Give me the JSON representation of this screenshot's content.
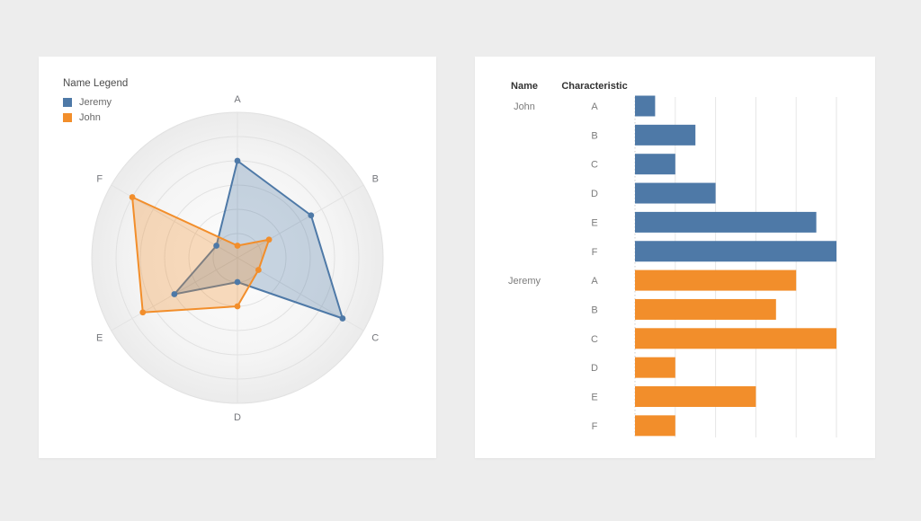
{
  "page": {
    "background": "#ededed"
  },
  "colors": {
    "blue": "#4e79a7",
    "orange": "#f28e2b"
  },
  "radar_card": {
    "legend": {
      "title": "Name Legend",
      "items": [
        {
          "label": "Jeremy",
          "color": "#4e79a7"
        },
        {
          "label": "John",
          "color": "#f28e2b"
        }
      ]
    }
  },
  "bar_card": {
    "name_header": "Name",
    "characteristic_header": "Characteristic"
  },
  "chart_data": [
    {
      "type": "radar",
      "categories": [
        "A",
        "B",
        "C",
        "D",
        "E",
        "F"
      ],
      "series": [
        {
          "name": "Jeremy",
          "color": "#4e79a7",
          "values": [
            4,
            3.5,
            5,
            1,
            3,
            1
          ]
        },
        {
          "name": "John",
          "color": "#f28e2b",
          "values": [
            0.5,
            1.5,
            1,
            2,
            4.5,
            5
          ]
        }
      ],
      "rmax": 6,
      "rings": 6,
      "fill_opacity": 0.3,
      "legend_title": "Name Legend",
      "legend_position": "top-left"
    },
    {
      "type": "bar",
      "orientation": "horizontal",
      "column_headers": [
        "Name",
        "Characteristic"
      ],
      "categories": [
        "A",
        "B",
        "C",
        "D",
        "E",
        "F"
      ],
      "groups": [
        {
          "name": "John",
          "color": "#4e79a7",
          "values": [
            0.5,
            1.5,
            1,
            2,
            4.5,
            5
          ]
        },
        {
          "name": "Jeremy",
          "color": "#f28e2b",
          "values": [
            4,
            3.5,
            5,
            1,
            3,
            1
          ]
        }
      ],
      "xlim": [
        0,
        5
      ],
      "gridline_step": 1,
      "grid": true
    }
  ]
}
